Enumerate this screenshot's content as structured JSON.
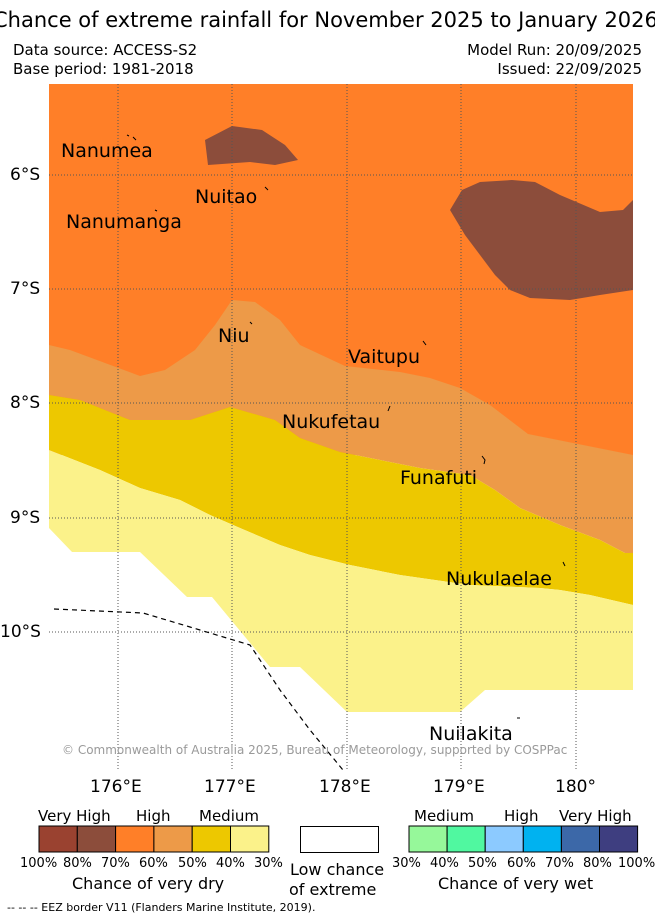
{
  "title": "Chance of extreme rainfall for November 2025 to January 2026",
  "meta": {
    "data_source": "Data source: ACCESS-S2",
    "base_period": "Base period: 1981-2018",
    "model_run": "Model Run: 20/09/2025",
    "issued": "Issued: 22/09/2025"
  },
  "map": {
    "lat_labels": [
      "6°S",
      "7°S",
      "8°S",
      "9°S",
      "10°S"
    ],
    "lon_labels": [
      "176°E",
      "177°E",
      "178°E",
      "179°E",
      "180°"
    ],
    "places": [
      "Nanumea",
      "Nuitao",
      "Nanumanga",
      "Niu",
      "Vaitupu",
      "Nukufetau",
      "Funafuti",
      "Nukulaelae",
      "Nuilakita"
    ],
    "copyright": "© Commonwealth of Australia 2025, Bureau of Meteorology, supported by COSPPac"
  },
  "legend": {
    "dry": {
      "headers": [
        "Very High",
        "High",
        "Medium"
      ],
      "colors": [
        "#9a4230",
        "#8c4d3b",
        "#ff7f28",
        "#ed9a48",
        "#edc800",
        "#fbf28a"
      ],
      "ticks": [
        "100%",
        "80%",
        "70%",
        "60%",
        "50%",
        "40%",
        "30%"
      ],
      "caption": "Chance of very dry"
    },
    "low": {
      "color": "#ffffff",
      "caption_line1": "Low chance",
      "caption_line2": "of extreme"
    },
    "wet": {
      "headers": [
        "Medium",
        "High",
        "Very High"
      ],
      "colors": [
        "#96f89a",
        "#50f8a0",
        "#8ccaff",
        "#00b2f0",
        "#3c68a8",
        "#3e3e80"
      ],
      "ticks": [
        "30%",
        "40%",
        "50%",
        "60%",
        "70%",
        "80%",
        "100%"
      ],
      "caption": "Chance of very wet"
    },
    "eez_note": "--  --  -- EEZ border V11 (Flanders Marine Institute, 2019)."
  }
}
